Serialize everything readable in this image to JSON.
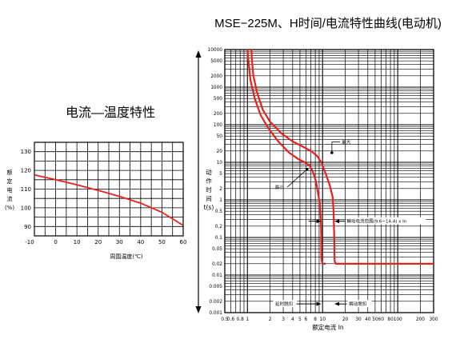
{
  "chart_data": [
    {
      "type": "line",
      "title": "电流—温度特性",
      "xlabel": "周围温度(℃)",
      "ylabel": [
        "额",
        "定",
        "电",
        "流",
        "(%)"
      ],
      "x_ticks": [
        "-10",
        "0",
        "10",
        "20",
        "30",
        "40",
        "50",
        "60"
      ],
      "y_ticks": [
        "90",
        "100",
        "110",
        "120",
        "130"
      ],
      "xlim": [
        -10,
        60
      ],
      "ylim": [
        85,
        135
      ],
      "grid": true,
      "series": [
        {
          "x": [
            -10,
            0,
            10,
            20,
            30,
            40,
            50,
            60
          ],
          "y": [
            117.6,
            115.0,
            112.3,
            109.3,
            106.1,
            102.5,
            97.6,
            90.6
          ]
        }
      ],
      "line_color": "#e8201e"
    },
    {
      "type": "line",
      "title": "MSE−225M、H时间/电流特性曲线(电动机)",
      "xlabel": "额定电流  In",
      "ylabel": [
        "动",
        "作",
        "时",
        "间",
        "t(s)"
      ],
      "x_scale": "log",
      "y_scale": "log",
      "x_ticks": [
        "0.5",
        "0.6",
        "0.8",
        "1",
        "2",
        "3",
        "4",
        "5",
        "6",
        "8",
        "10",
        "20",
        "30",
        "40",
        "50",
        "60",
        "80",
        "100",
        "200",
        "300"
      ],
      "y_ticks": [
        "0.001",
        "0.002",
        "0.005",
        "0.01",
        "0.02",
        "0.05",
        "0.1",
        "0.2",
        "0.5",
        "1",
        "2",
        "5",
        "10",
        "20",
        "50",
        "100",
        "200",
        "500",
        "1000",
        "2000",
        "5000",
        "10000"
      ],
      "xlim": [
        0.5,
        300
      ],
      "ylim": [
        0.001,
        10000
      ],
      "grid": true,
      "series": [
        {
          "x": [
            1.13,
            1.15,
            1.2,
            1.35,
            1.6,
            2.0,
            2.8,
            4.0,
            5.5,
            7.0,
            8.4,
            9.6,
            11.0,
            12.5,
            13.6,
            14.0,
            14.3,
            14.4,
            14.4,
            14.5,
            15.0,
            16.0,
            20,
            50,
            300
          ],
          "y": [
            10000,
            5000,
            2000,
            700,
            250,
            120,
            60,
            36,
            26,
            20,
            15,
            10,
            5.0,
            2.4,
            1.2,
            0.5,
            0.1,
            0.05,
            0.03,
            0.023,
            0.02,
            0.02,
            0.02,
            0.02,
            0.02
          ]
        },
        {
          "x": [
            1.0,
            1.03,
            1.1,
            1.25,
            1.5,
            1.9,
            2.6,
            3.6,
            4.8,
            5.8,
            6.8,
            7.6,
            8.2,
            8.7,
            9.2,
            9.5,
            9.6,
            9.6,
            9.6,
            9.7,
            10.0,
            10.5,
            11.0
          ],
          "y": [
            10000,
            5000,
            1500,
            500,
            180,
            80,
            35,
            18,
            12,
            10,
            8,
            5,
            3,
            1.5,
            0.8,
            0.3,
            0.1,
            0.05,
            0.03,
            0.025,
            0.02,
            0.02,
            0.02
          ]
        }
      ],
      "line_color": "#e8201e",
      "annotations": {
        "max_label": "最大",
        "min_label": "最小",
        "inst_range": "瞬动电流范围(9.6−14.4) x In",
        "delay_label": "延时脱扣",
        "inst_trip_label": "瞬动脱扣"
      }
    }
  ]
}
